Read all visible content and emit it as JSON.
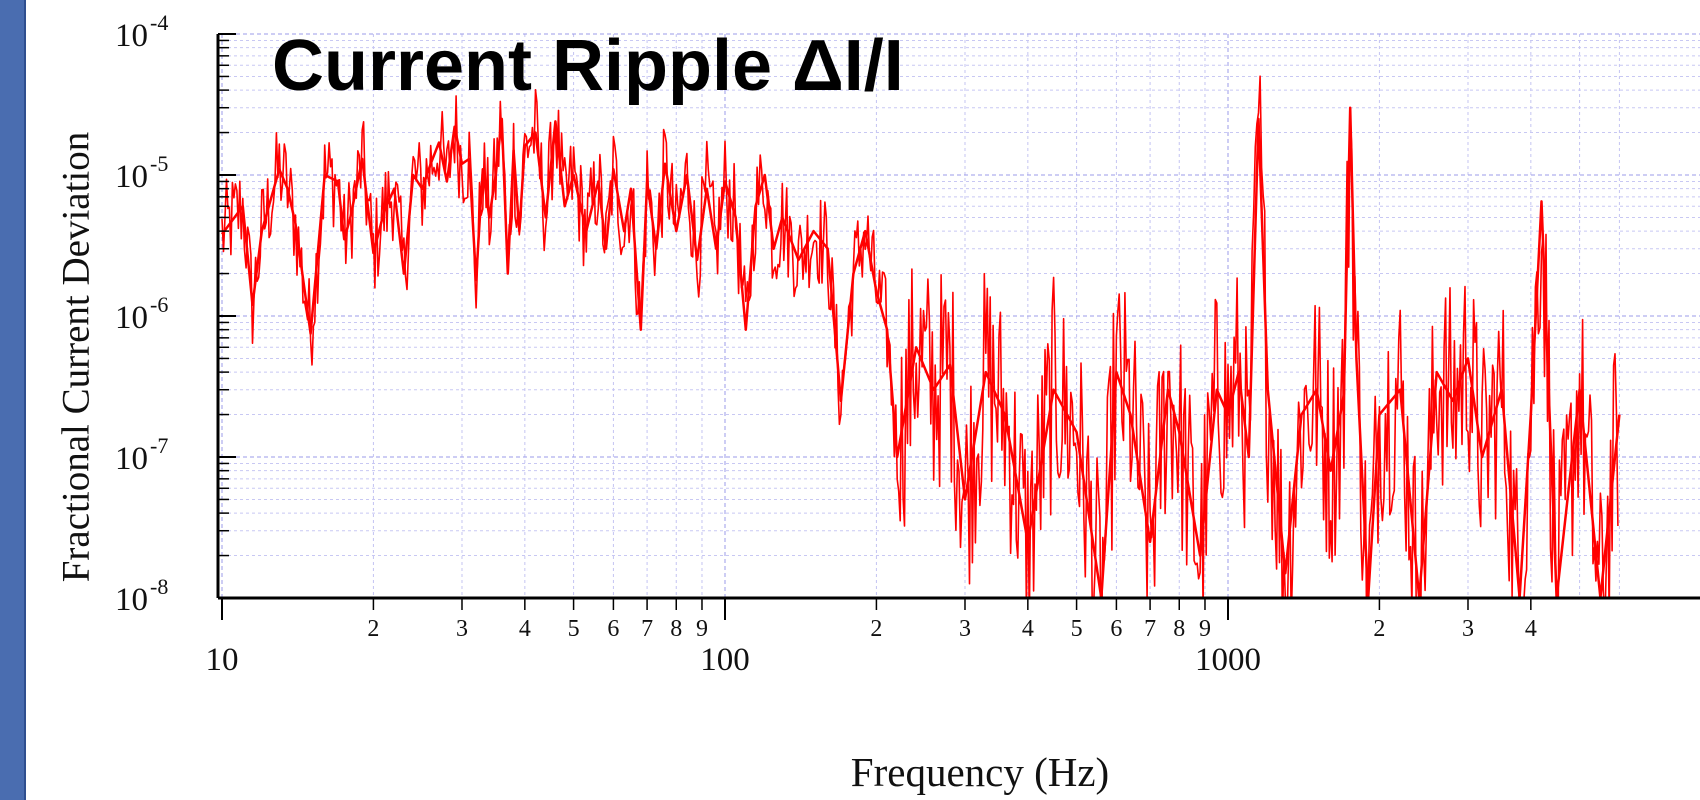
{
  "chart_data": {
    "type": "line",
    "title": "Current Ripple ΔI/I",
    "xlabel": "Frequency (Hz)",
    "ylabel": "Fractional Current Deviation",
    "xscale": "log",
    "yscale": "log",
    "xlim": [
      10,
      6000
    ],
    "ylim": [
      1e-08,
      0.0001
    ],
    "grid": true,
    "x_major_ticks": [
      {
        "value": 10,
        "label": "10"
      },
      {
        "value": 100,
        "label": "100"
      },
      {
        "value": 1000,
        "label": "1000"
      }
    ],
    "x_minor_tick_labels": [
      {
        "value": 20,
        "label": "2"
      },
      {
        "value": 30,
        "label": "3"
      },
      {
        "value": 40,
        "label": "4"
      },
      {
        "value": 50,
        "label": "5"
      },
      {
        "value": 60,
        "label": "6"
      },
      {
        "value": 70,
        "label": "7"
      },
      {
        "value": 80,
        "label": "8"
      },
      {
        "value": 90,
        "label": "9"
      },
      {
        "value": 200,
        "label": "2"
      },
      {
        "value": 300,
        "label": "3"
      },
      {
        "value": 400,
        "label": "4"
      },
      {
        "value": 500,
        "label": "5"
      },
      {
        "value": 600,
        "label": "6"
      },
      {
        "value": 700,
        "label": "7"
      },
      {
        "value": 800,
        "label": "8"
      },
      {
        "value": 900,
        "label": "9"
      },
      {
        "value": 2000,
        "label": "2"
      },
      {
        "value": 3000,
        "label": "3"
      },
      {
        "value": 4000,
        "label": "4"
      }
    ],
    "y_ticks": [
      {
        "value": 1e-08,
        "base": "10",
        "exp": "-8"
      },
      {
        "value": 1e-07,
        "base": "10",
        "exp": "-7"
      },
      {
        "value": 1e-06,
        "base": "10",
        "exp": "-6"
      },
      {
        "value": 1e-05,
        "base": "10",
        "exp": "-5"
      },
      {
        "value": 0.0001,
        "base": "10",
        "exp": "-4"
      }
    ],
    "series": [
      {
        "color": "#ff0000",
        "x": [
          10,
          11,
          11.5,
          12,
          13,
          13.5,
          14,
          15,
          16,
          17,
          17.5,
          18,
          19,
          20,
          21,
          22,
          23,
          24,
          25,
          26,
          27,
          28,
          29,
          30,
          31,
          32,
          33,
          34,
          35,
          36,
          37,
          38,
          39,
          40,
          42,
          44,
          46,
          48,
          50,
          53,
          56,
          58,
          60,
          63,
          65,
          68,
          70,
          73,
          76,
          80,
          84,
          88,
          92,
          96,
          100,
          105,
          110,
          115,
          120,
          125,
          130,
          140,
          150,
          160,
          170,
          180,
          190,
          200,
          210,
          220,
          240,
          260,
          280,
          300,
          330,
          360,
          400,
          450,
          500,
          560,
          600,
          640,
          700,
          760,
          800,
          880,
          950,
          1000,
          1050,
          1100,
          1150,
          1200,
          1300,
          1400,
          1500,
          1600,
          1700,
          1750,
          1800,
          1900,
          2000,
          2200,
          2400,
          2600,
          2800,
          3000,
          3200,
          3500,
          3800,
          4000,
          4200,
          4500,
          5000,
          5500,
          6000
        ],
        "y": [
          3.8e-06,
          6e-06,
          1.2e-06,
          4e-06,
          1.1e-05,
          8e-06,
          4.5e-06,
          7.5e-07,
          1e-05,
          9e-06,
          3.5e-06,
          5e-06,
          1.3e-05,
          2.8e-06,
          5.5e-06,
          8e-06,
          2e-06,
          1e-05,
          8e-06,
          1.2e-05,
          1.7e-05,
          9e-06,
          2.2e-05,
          1.2e-05,
          1.3e-05,
          1.8e-06,
          1.1e-05,
          5e-06,
          1e-05,
          2.5e-05,
          2e-06,
          1.5e-05,
          4e-06,
          1.6e-05,
          2e-05,
          5e-06,
          2.4e-05,
          6e-06,
          1e-05,
          4e-06,
          9e-06,
          3e-06,
          1.1e-05,
          4e-06,
          8e-06,
          8e-07,
          9e-06,
          3e-06,
          1.2e-05,
          4e-06,
          1e-05,
          2.5e-06,
          8e-06,
          3e-06,
          9e-06,
          5e-06,
          8e-07,
          6e-06,
          1e-05,
          3e-06,
          5e-06,
          2.5e-06,
          4e-06,
          3e-06,
          2.5e-07,
          2e-06,
          4e-06,
          1.5e-06,
          8e-07,
          1e-07,
          6e-07,
          3e-07,
          4.5e-07,
          5e-08,
          4e-07,
          2e-07,
          2.5e-08,
          3e-07,
          1.5e-07,
          1e-08,
          4e-07,
          2e-07,
          2.5e-08,
          3e-07,
          1.5e-07,
          2e-08,
          3e-07,
          2e-07,
          4e-07,
          1e-07,
          2.5e-05,
          3e-07,
          1.5e-08,
          2e-07,
          3e-07,
          8e-08,
          2.8e-07,
          3e-05,
          5e-07,
          1e-08,
          2e-07,
          3e-07,
          1e-08,
          4e-07,
          2.5e-07,
          5e-07,
          1e-07,
          3e-07,
          1e-08,
          2e-07,
          6.5e-06,
          1e-08,
          3e-07,
          1e-08,
          2e-07
        ]
      }
    ]
  }
}
